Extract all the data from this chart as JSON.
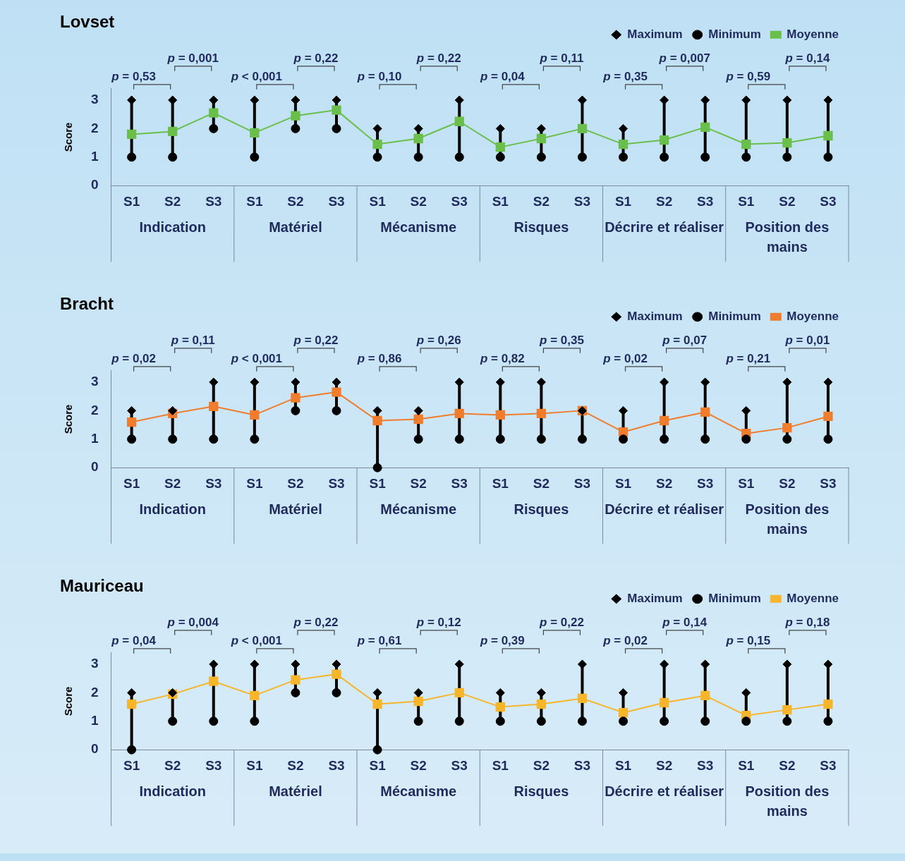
{
  "chart_data": [
    {
      "type": "line",
      "title": "Lovset",
      "ylabel": "Score",
      "categories": [
        "S1",
        "S2",
        "S3",
        "S1",
        "S2",
        "S3",
        "S1",
        "S2",
        "S3",
        "S1",
        "S2",
        "S3",
        "S1",
        "S2",
        "S3",
        "S1",
        "S2",
        "S3"
      ],
      "ylim": [
        0,
        3.4
      ],
      "yticks": [
        0,
        1,
        2,
        3
      ],
      "legend": "top right",
      "series": [
        {
          "name": "Maximum",
          "type": "scatter",
          "marker": "diamond",
          "color": "#000000",
          "values": [
            3,
            3,
            3,
            3,
            3,
            3,
            2,
            2,
            3,
            2,
            2,
            3,
            2,
            3,
            3,
            3,
            3,
            3
          ]
        },
        {
          "name": "Minimum",
          "type": "scatter",
          "marker": "circle",
          "color": "#000000",
          "values": [
            1,
            1,
            2,
            1,
            2,
            2,
            1,
            1,
            1,
            1,
            1,
            1,
            1,
            1,
            1,
            1,
            1,
            1
          ]
        },
        {
          "name": "Moyenne",
          "type": "line",
          "marker": "square",
          "color": "#6abf4b",
          "values": [
            1.8,
            1.9,
            2.55,
            1.85,
            2.45,
            2.65,
            1.45,
            1.65,
            2.25,
            1.35,
            1.65,
            2.0,
            1.45,
            1.6,
            2.05,
            1.45,
            1.5,
            1.75
          ]
        }
      ],
      "annotations": [
        "Indication",
        "Matériel",
        "Mécanisme",
        "Risques",
        "Décrire et réaliser",
        "Position des mains",
        "p = 0,53",
        "p = 0,001",
        "p < 0,001",
        "p = 0,22",
        "p = 0,10",
        "p = 0,22",
        "p = 0,04",
        "p = 0,11",
        "p = 0,35",
        "p = 0,007",
        "p = 0,59",
        "p = 0,14"
      ]
    },
    {
      "type": "line",
      "title": "Bracht",
      "ylabel": "Score",
      "categories": [
        "S1",
        "S2",
        "S3",
        "S1",
        "S2",
        "S3",
        "S1",
        "S2",
        "S3",
        "S1",
        "S2",
        "S3",
        "S1",
        "S2",
        "S3",
        "S1",
        "S2",
        "S3"
      ],
      "ylim": [
        0,
        3.4
      ],
      "yticks": [
        0,
        1,
        2,
        3
      ],
      "legend": "top right",
      "series": [
        {
          "name": "Maximum",
          "type": "scatter",
          "marker": "diamond",
          "color": "#000000",
          "values": [
            2,
            2,
            3,
            3,
            3,
            3,
            2,
            2,
            3,
            3,
            3,
            2,
            2,
            3,
            3,
            2,
            3,
            3
          ]
        },
        {
          "name": "Minimum",
          "type": "scatter",
          "marker": "circle",
          "color": "#000000",
          "values": [
            1,
            1,
            1,
            1,
            2,
            2,
            0,
            1,
            1,
            1,
            1,
            1,
            1,
            1,
            1,
            1,
            1,
            1
          ]
        },
        {
          "name": "Moyenne",
          "type": "line",
          "marker": "square",
          "color": "#ef7d2d",
          "values": [
            1.6,
            1.9,
            2.15,
            1.85,
            2.45,
            2.65,
            1.65,
            1.7,
            1.9,
            1.85,
            1.9,
            2.0,
            1.25,
            1.65,
            1.95,
            1.2,
            1.4,
            1.8
          ]
        }
      ],
      "annotations": [
        "Indication",
        "Matériel",
        "Mécanisme",
        "Risques",
        "Décrire et réaliser",
        "Position des mains",
        "p = 0,02",
        "p = 0,11",
        "p < 0,001",
        "p = 0,22",
        "p = 0,86",
        "p = 0,26",
        "p = 0,82",
        "p = 0,35",
        "p = 0,02",
        "p = 0,07",
        "p = 0,21",
        "p = 0,01"
      ]
    },
    {
      "type": "line",
      "title": "Mauriceau",
      "ylabel": "Score",
      "categories": [
        "S1",
        "S2",
        "S3",
        "S1",
        "S2",
        "S3",
        "S1",
        "S2",
        "S3",
        "S1",
        "S2",
        "S3",
        "S1",
        "S2",
        "S3",
        "S1",
        "S2",
        "S3"
      ],
      "ylim": [
        0,
        3.4
      ],
      "yticks": [
        0,
        1,
        2,
        3
      ],
      "legend": "top right",
      "series": [
        {
          "name": "Maximum",
          "type": "scatter",
          "marker": "diamond",
          "color": "#000000",
          "values": [
            2,
            2,
            3,
            3,
            3,
            3,
            2,
            2,
            3,
            2,
            2,
            3,
            2,
            3,
            3,
            2,
            3,
            3
          ]
        },
        {
          "name": "Minimum",
          "type": "scatter",
          "marker": "circle",
          "color": "#000000",
          "values": [
            0,
            1,
            1,
            1,
            2,
            2,
            0,
            1,
            1,
            1,
            1,
            1,
            1,
            1,
            1,
            1,
            1,
            1
          ]
        },
        {
          "name": "Moyenne",
          "type": "line",
          "marker": "square",
          "color": "#f7b52c",
          "values": [
            1.6,
            1.95,
            2.4,
            1.9,
            2.45,
            2.65,
            1.6,
            1.7,
            2.0,
            1.5,
            1.6,
            1.8,
            1.3,
            1.65,
            1.9,
            1.2,
            1.4,
            1.6
          ]
        }
      ],
      "annotations": [
        "Indication",
        "Matériel",
        "Mécanisme",
        "Risques",
        "Décrire et réaliser",
        "Position des mains",
        "p = 0,04",
        "p = 0,004",
        "p < 0,001",
        "p = 0,22",
        "p = 0,61",
        "p = 0,12",
        "p = 0,39",
        "p = 0,22",
        "p = 0,02",
        "p = 0,14",
        "p = 0,15",
        "p = 0,18"
      ]
    }
  ]
}
